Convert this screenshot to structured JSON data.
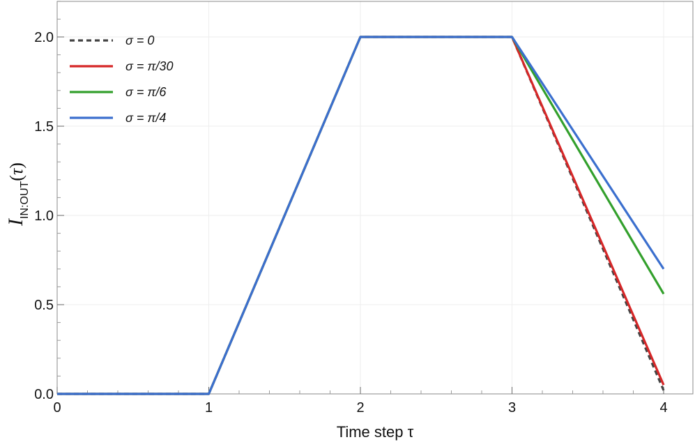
{
  "chart_data": {
    "type": "line",
    "title": "",
    "xlabel": "Time step τ",
    "ylabel_main": "I",
    "ylabel_sub": "IN:OUT",
    "ylabel_paren_open": "(",
    "ylabel_tau": "τ",
    "ylabel_paren_close": ")",
    "xlim": [
      0,
      4
    ],
    "ylim": [
      0,
      2.2
    ],
    "x_ticks": [
      0,
      1,
      2,
      3,
      4
    ],
    "x_tick_labels": [
      "0",
      "1",
      "2",
      "3",
      "4"
    ],
    "y_ticks": [
      0,
      0.5,
      1.0,
      1.5,
      2.0
    ],
    "y_tick_labels": [
      "0.0",
      "0.5",
      "1.0",
      "1.5",
      "2.0"
    ],
    "grid": true,
    "legend_position": "top-left",
    "series": [
      {
        "name": "σ = 0",
        "color": "#444444",
        "dashed": true,
        "x": [
          0,
          1,
          2,
          3,
          4
        ],
        "y": [
          0,
          0,
          2.0,
          2.0,
          0.02
        ]
      },
      {
        "name": "σ = π/30",
        "color": "#d62728",
        "dashed": false,
        "x": [
          0,
          1,
          2,
          3,
          4
        ],
        "y": [
          0,
          0,
          2.0,
          2.0,
          0.05
        ]
      },
      {
        "name": "σ = π/6",
        "color": "#33a02c",
        "dashed": false,
        "x": [
          0,
          1,
          2,
          3,
          4
        ],
        "y": [
          0,
          0,
          2.0,
          2.0,
          0.56
        ]
      },
      {
        "name": "σ = π/4",
        "color": "#3b6fce",
        "dashed": false,
        "x": [
          0,
          1,
          2,
          3,
          4
        ],
        "y": [
          0,
          0,
          2.0,
          2.0,
          0.7
        ]
      }
    ]
  }
}
